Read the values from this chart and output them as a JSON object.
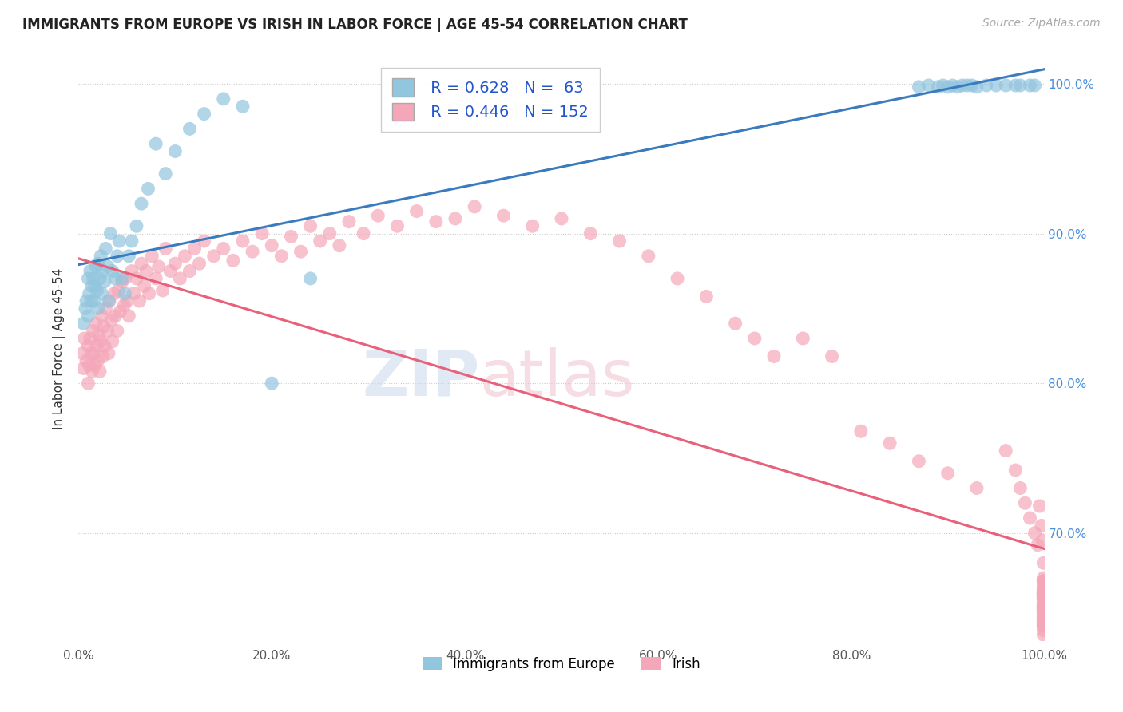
{
  "title": "IMMIGRANTS FROM EUROPE VS IRISH IN LABOR FORCE | AGE 45-54 CORRELATION CHART",
  "source": "Source: ZipAtlas.com",
  "ylabel": "In Labor Force | Age 45-54",
  "xmin": 0.0,
  "xmax": 1.0,
  "ymin": 0.628,
  "ymax": 1.018,
  "blue_R": 0.628,
  "blue_N": 63,
  "pink_R": 0.446,
  "pink_N": 152,
  "blue_color": "#92c5de",
  "pink_color": "#f4a7b9",
  "blue_line_color": "#3a7bbf",
  "pink_line_color": "#e8607a",
  "legend_label_blue": "Immigrants from Europe",
  "legend_label_pink": "Irish",
  "yticks": [
    0.7,
    0.8,
    0.9,
    1.0
  ],
  "ytick_labels": [
    "70.0%",
    "80.0%",
    "90.0%",
    "100.0%"
  ],
  "xticks": [
    0.0,
    0.2,
    0.4,
    0.6,
    0.8,
    1.0
  ],
  "xtick_labels": [
    "0.0%",
    "20.0%",
    "40.0%",
    "60.0%",
    "80.0%",
    "100.0%"
  ],
  "blue_x": [
    0.005,
    0.007,
    0.008,
    0.01,
    0.01,
    0.011,
    0.012,
    0.013,
    0.014,
    0.015,
    0.016,
    0.017,
    0.018,
    0.019,
    0.02,
    0.02,
    0.022,
    0.023,
    0.024,
    0.025,
    0.027,
    0.028,
    0.03,
    0.031,
    0.033,
    0.035,
    0.038,
    0.04,
    0.042,
    0.045,
    0.048,
    0.052,
    0.055,
    0.06,
    0.065,
    0.072,
    0.08,
    0.09,
    0.1,
    0.115,
    0.13,
    0.15,
    0.17,
    0.2,
    0.24,
    0.87,
    0.88,
    0.89,
    0.895,
    0.9,
    0.905,
    0.91,
    0.915,
    0.92,
    0.925,
    0.93,
    0.94,
    0.95,
    0.96,
    0.97,
    0.975,
    0.985,
    0.99
  ],
  "blue_y": [
    0.84,
    0.85,
    0.855,
    0.845,
    0.87,
    0.86,
    0.875,
    0.855,
    0.865,
    0.87,
    0.855,
    0.865,
    0.878,
    0.862,
    0.85,
    0.88,
    0.87,
    0.885,
    0.86,
    0.875,
    0.868,
    0.89,
    0.878,
    0.855,
    0.9,
    0.875,
    0.87,
    0.885,
    0.895,
    0.87,
    0.86,
    0.885,
    0.895,
    0.905,
    0.92,
    0.93,
    0.96,
    0.94,
    0.955,
    0.97,
    0.98,
    0.99,
    0.985,
    0.8,
    0.87,
    0.998,
    0.999,
    0.998,
    0.999,
    0.998,
    0.999,
    0.998,
    0.999,
    0.999,
    0.999,
    0.998,
    0.999,
    0.999,
    0.999,
    0.999,
    0.999,
    0.999,
    0.999
  ],
  "pink_x": [
    0.004,
    0.005,
    0.006,
    0.008,
    0.01,
    0.01,
    0.011,
    0.012,
    0.013,
    0.014,
    0.015,
    0.016,
    0.017,
    0.018,
    0.019,
    0.02,
    0.021,
    0.022,
    0.023,
    0.024,
    0.025,
    0.026,
    0.027,
    0.028,
    0.03,
    0.031,
    0.032,
    0.034,
    0.035,
    0.037,
    0.038,
    0.04,
    0.041,
    0.043,
    0.045,
    0.047,
    0.048,
    0.05,
    0.052,
    0.055,
    0.057,
    0.06,
    0.063,
    0.065,
    0.068,
    0.07,
    0.073,
    0.076,
    0.08,
    0.083,
    0.087,
    0.09,
    0.095,
    0.1,
    0.105,
    0.11,
    0.115,
    0.12,
    0.125,
    0.13,
    0.14,
    0.15,
    0.16,
    0.17,
    0.18,
    0.19,
    0.2,
    0.21,
    0.22,
    0.23,
    0.24,
    0.25,
    0.26,
    0.27,
    0.28,
    0.295,
    0.31,
    0.33,
    0.35,
    0.37,
    0.39,
    0.41,
    0.44,
    0.47,
    0.5,
    0.53,
    0.56,
    0.59,
    0.62,
    0.65,
    0.68,
    0.7,
    0.72,
    0.75,
    0.78,
    0.81,
    0.84,
    0.87,
    0.9,
    0.93,
    0.96,
    0.97,
    0.975,
    0.98,
    0.985,
    0.99,
    0.993,
    0.995,
    0.997,
    0.998,
    0.999,
    0.999,
    0.999,
    0.999,
    0.999,
    0.999,
    0.999,
    0.999,
    0.999,
    0.999,
    0.999,
    0.999,
    0.999,
    0.999,
    0.999,
    0.999,
    0.999,
    0.999,
    0.999,
    0.999,
    0.999,
    0.999,
    0.999,
    0.999,
    0.999,
    0.999,
    0.999,
    0.999,
    0.999,
    0.999,
    0.999,
    0.999,
    0.999,
    0.999,
    0.999,
    0.999,
    0.999,
    0.999,
    0.999,
    0.999,
    0.999,
    0.999
  ],
  "pink_y": [
    0.82,
    0.81,
    0.83,
    0.815,
    0.8,
    0.825,
    0.812,
    0.83,
    0.82,
    0.808,
    0.835,
    0.82,
    0.812,
    0.84,
    0.825,
    0.815,
    0.832,
    0.808,
    0.828,
    0.845,
    0.818,
    0.838,
    0.825,
    0.85,
    0.835,
    0.82,
    0.855,
    0.842,
    0.828,
    0.86,
    0.845,
    0.835,
    0.862,
    0.848,
    0.868,
    0.852,
    0.87,
    0.855,
    0.845,
    0.875,
    0.86,
    0.87,
    0.855,
    0.88,
    0.865,
    0.875,
    0.86,
    0.885,
    0.87,
    0.878,
    0.862,
    0.89,
    0.875,
    0.88,
    0.87,
    0.885,
    0.875,
    0.89,
    0.88,
    0.895,
    0.885,
    0.89,
    0.882,
    0.895,
    0.888,
    0.9,
    0.892,
    0.885,
    0.898,
    0.888,
    0.905,
    0.895,
    0.9,
    0.892,
    0.908,
    0.9,
    0.912,
    0.905,
    0.915,
    0.908,
    0.91,
    0.918,
    0.912,
    0.905,
    0.91,
    0.9,
    0.895,
    0.885,
    0.87,
    0.858,
    0.84,
    0.83,
    0.818,
    0.83,
    0.818,
    0.768,
    0.76,
    0.748,
    0.74,
    0.73,
    0.755,
    0.742,
    0.73,
    0.72,
    0.71,
    0.7,
    0.692,
    0.718,
    0.705,
    0.695,
    0.68,
    0.67,
    0.658,
    0.668,
    0.658,
    0.648,
    0.66,
    0.65,
    0.64,
    0.632,
    0.668,
    0.656,
    0.645,
    0.635,
    0.66,
    0.65,
    0.642,
    0.658,
    0.648,
    0.638,
    0.662,
    0.652,
    0.642,
    0.66,
    0.65,
    0.64,
    0.658,
    0.648,
    0.638,
    0.666,
    0.656,
    0.646,
    0.664,
    0.654,
    0.644,
    0.662,
    0.652,
    0.642,
    0.66,
    0.65,
    0.64,
    0.638
  ]
}
